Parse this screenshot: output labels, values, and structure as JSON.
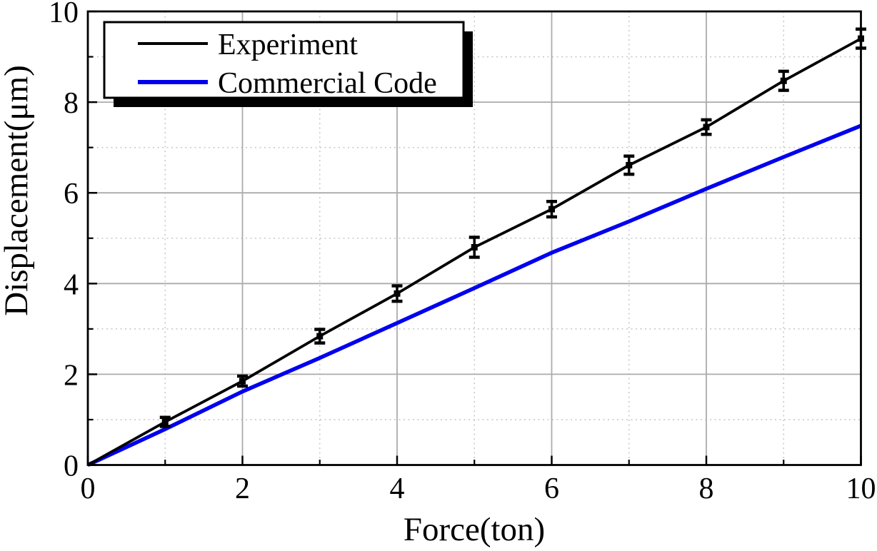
{
  "chart_data": {
    "type": "line",
    "title": "",
    "xlabel": "Force(ton)",
    "ylabel": "Displacement(μm)",
    "xlim": [
      0,
      10
    ],
    "ylim": [
      0,
      10
    ],
    "x_major_ticks": [
      0,
      2,
      4,
      6,
      8,
      10
    ],
    "x_minor_ticks": [
      1,
      3,
      5,
      7,
      9
    ],
    "y_major_ticks": [
      0,
      2,
      4,
      6,
      8,
      10
    ],
    "y_minor_ticks": [
      1,
      3,
      5,
      7,
      9
    ],
    "x_tick_labels": [
      "0",
      "2",
      "4",
      "6",
      "8",
      "10"
    ],
    "y_tick_labels": [
      "0",
      "2",
      "4",
      "6",
      "8",
      "10"
    ],
    "grid": {
      "major_style": "solid",
      "minor_style": "dotted",
      "major_color": "#ababab",
      "minor_color": "#c9c9c9"
    },
    "legend": {
      "position": "top-left",
      "entries": [
        "Experiment",
        "Commercial Code"
      ],
      "shadow": true
    },
    "series": [
      {
        "name": "Experiment",
        "style": "line+errorbars+square-markers",
        "color": "#000000",
        "x": [
          0,
          1,
          2,
          3,
          4,
          5,
          6,
          7,
          8,
          9,
          10
        ],
        "y": [
          0,
          0.95,
          1.85,
          2.84,
          3.78,
          4.8,
          5.64,
          6.61,
          7.45,
          8.47,
          9.4
        ],
        "y_err": [
          0,
          0.1,
          0.11,
          0.15,
          0.17,
          0.22,
          0.17,
          0.2,
          0.16,
          0.21,
          0.21
        ]
      },
      {
        "name": "Commercial Code",
        "style": "line",
        "color": "#0000ee",
        "x": [
          0,
          1,
          2,
          3,
          4,
          5,
          6,
          7,
          8,
          9,
          10
        ],
        "y": [
          0,
          0.79,
          1.62,
          2.36,
          3.13,
          3.9,
          4.68,
          5.37,
          6.09,
          6.79,
          7.48
        ]
      }
    ]
  }
}
